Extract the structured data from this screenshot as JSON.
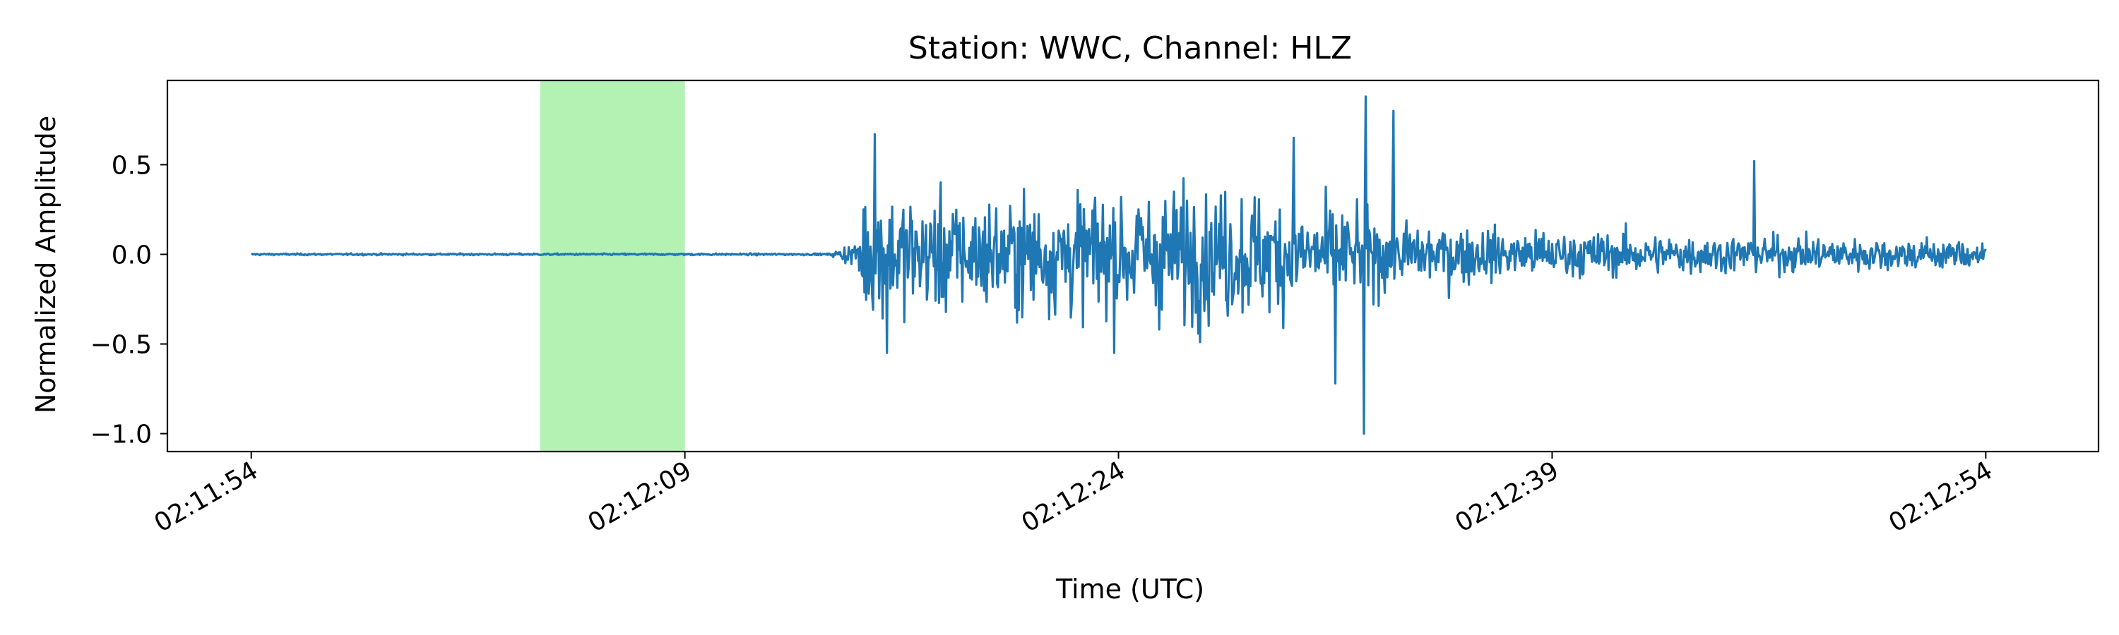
{
  "chart_data": {
    "type": "line",
    "title": "Station: WWC, Channel: HLZ",
    "xlabel": "Time (UTC)",
    "ylabel": "Normalized Amplitude",
    "x_start": "02:11:54",
    "x_end": "02:12:54",
    "xlim_seconds": [
      -2.9,
      63.9
    ],
    "ylim": [
      -1.1,
      0.97
    ],
    "xticks": [
      "02:11:54",
      "02:12:09",
      "02:12:24",
      "02:12:39",
      "02:12:54"
    ],
    "yticks": [
      -1.0,
      -0.5,
      0.0,
      0.5
    ],
    "ytick_labels": [
      "−1.0",
      "−0.5",
      "0.0",
      "0.5"
    ],
    "highlight_window": {
      "start": "02:12:04",
      "end": "02:12:09",
      "color": "#b3f2b3"
    },
    "series": [
      {
        "color": "#1f77b4",
        "noise_until": "02:12:14",
        "onset": "02:12:15",
        "peaks": [
          {
            "time": "02:12:15.5",
            "value": 0.67
          },
          {
            "time": "02:12:16",
            "value": -0.55
          },
          {
            "time": "02:12:32.5",
            "value": 0.88
          },
          {
            "time": "02:12:32.5",
            "value": -1.0
          },
          {
            "time": "02:12:31.5",
            "value": -0.72
          },
          {
            "time": "02:12:30",
            "value": 0.65
          },
          {
            "time": "02:12:33.5",
            "value": 0.8
          },
          {
            "time": "02:12:46",
            "value": 0.52
          },
          {
            "time": "02:12:54",
            "value": 0.03
          }
        ]
      }
    ],
    "grid": false,
    "legend": "none"
  }
}
